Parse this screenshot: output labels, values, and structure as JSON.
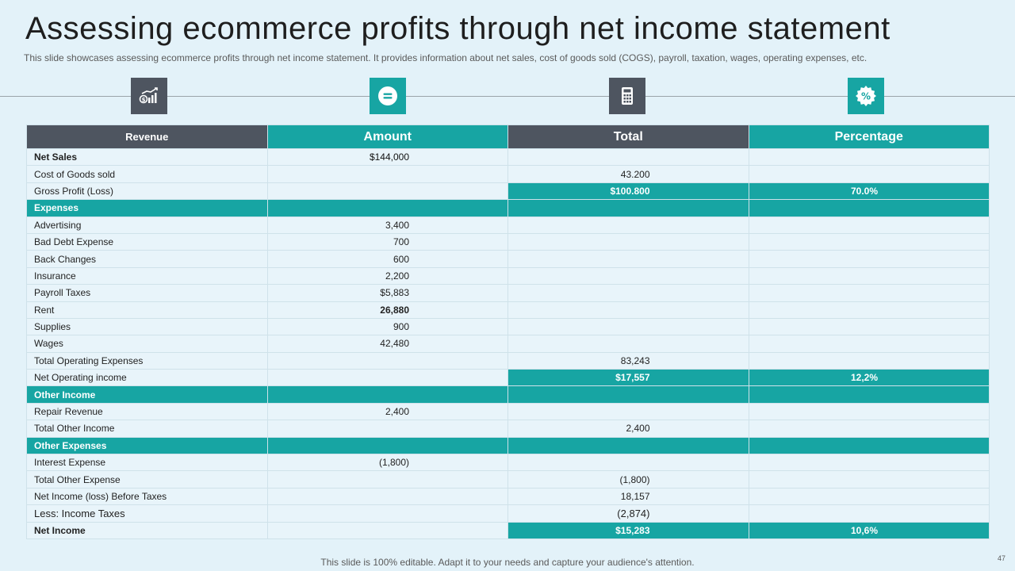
{
  "slide": {
    "title": "Assessing ecommerce profits through net income statement",
    "subtitle": "This slide showcases assessing ecommerce profits through net income statement. It provides information about net sales, cost of goods sold (COGS), payroll, taxation, wages, operating expenses, etc.",
    "footer": "This slide is 100% editable. Adapt it to your needs and capture your audience's attention.",
    "page_number": "47"
  },
  "icons": [
    {
      "name": "growth-chart-icon",
      "color": "#4e5560"
    },
    {
      "name": "equals-icon",
      "color": "#17a5a3"
    },
    {
      "name": "calculator-icon",
      "color": "#4e5560"
    },
    {
      "name": "percent-badge-icon",
      "color": "#17a5a3"
    }
  ],
  "colors": {
    "teal": "#17a5a3",
    "dark": "#4e5560",
    "background": "#e3f2f9"
  },
  "table": {
    "headers": [
      "Revenue",
      "Amount",
      "Total",
      "Percentage"
    ],
    "rows": [
      {
        "label": "Net Sales",
        "amount": "$144,000",
        "total": "",
        "percentage": "",
        "type": "bold-label"
      },
      {
        "label": "Cost of Goods sold",
        "amount": "",
        "total": "43.200",
        "percentage": ""
      },
      {
        "label": "Gross Profit (Loss)",
        "amount": "",
        "total": "$100.800",
        "percentage": "70.0%",
        "type": "highlight"
      },
      {
        "label": "Expenses",
        "amount": "",
        "total": "",
        "percentage": "",
        "type": "section"
      },
      {
        "label": "Advertising",
        "amount": "3,400",
        "total": "",
        "percentage": ""
      },
      {
        "label": "Bad Debt Expense",
        "amount": "700",
        "total": "",
        "percentage": ""
      },
      {
        "label": "Back Changes",
        "amount": "600",
        "total": "",
        "percentage": ""
      },
      {
        "label": "Insurance",
        "amount": "2,200",
        "total": "",
        "percentage": ""
      },
      {
        "label": "Payroll Taxes",
        "amount": "$5,883",
        "total": "",
        "percentage": ""
      },
      {
        "label": "Rent",
        "amount": "26,880",
        "total": "",
        "percentage": "",
        "type": "bold-amount"
      },
      {
        "label": "Supplies",
        "amount": "900",
        "total": "",
        "percentage": ""
      },
      {
        "label": "Wages",
        "amount": "42,480",
        "total": "",
        "percentage": ""
      },
      {
        "label": "Total Operating Expenses",
        "amount": "",
        "total": "83,243",
        "percentage": ""
      },
      {
        "label": "Net Operating income",
        "amount": "",
        "total": "$17,557",
        "percentage": "12,2%",
        "type": "highlight"
      },
      {
        "label": "Other Income",
        "amount": "",
        "total": "",
        "percentage": "",
        "type": "section"
      },
      {
        "label": "Repair Revenue",
        "amount": "2,400",
        "total": "",
        "percentage": ""
      },
      {
        "label": "Total Other Income",
        "amount": "",
        "total": "2,400",
        "percentage": ""
      },
      {
        "label": "Other Expenses",
        "amount": "",
        "total": "",
        "percentage": "",
        "type": "section"
      },
      {
        "label": "Interest Expense",
        "amount": "(1,800)",
        "total": "",
        "percentage": ""
      },
      {
        "label": "Total Other Expense",
        "amount": "",
        "total": "(1,800)",
        "percentage": ""
      },
      {
        "label": "Net Income (loss) Before Taxes",
        "amount": "",
        "total": "18,157",
        "percentage": ""
      },
      {
        "label": "Less: Income Taxes",
        "amount": "",
        "total": "(2,874)",
        "percentage": "",
        "type": "larger"
      },
      {
        "label": "Net Income",
        "amount": "",
        "total": "$15,283",
        "percentage": "10,6%",
        "type": "highlight-bold-label"
      }
    ]
  }
}
